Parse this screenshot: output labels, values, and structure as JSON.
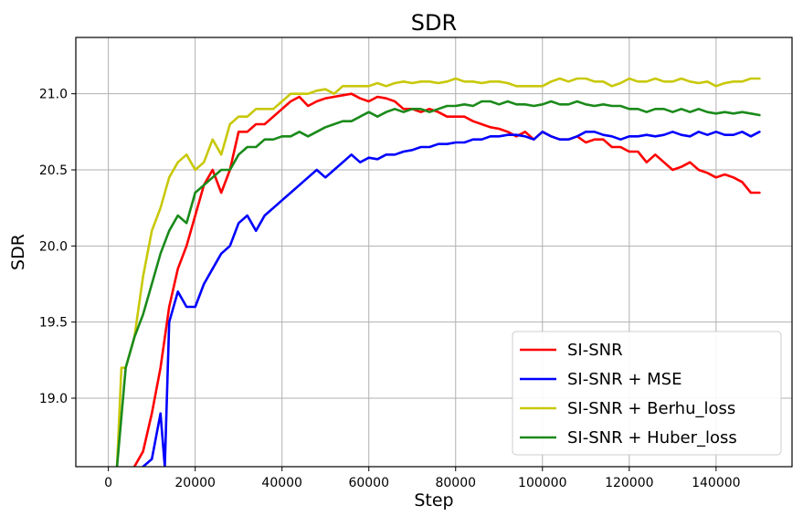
{
  "chart_data": {
    "type": "line",
    "title": "SDR",
    "xlabel": "Step",
    "ylabel": "SDR",
    "xlim": [
      -7500,
      157500
    ],
    "ylim": [
      18.55,
      21.37
    ],
    "xticks": [
      0,
      20000,
      40000,
      60000,
      80000,
      100000,
      120000,
      140000
    ],
    "xtick_labels": [
      "0",
      "20000",
      "40000",
      "60000",
      "80000",
      "100000",
      "120000",
      "140000"
    ],
    "yticks": [
      19.0,
      19.5,
      20.0,
      20.5,
      21.0
    ],
    "ytick_labels": [
      "19.0",
      "19.5",
      "20.0",
      "20.5",
      "21.0"
    ],
    "grid": true,
    "legend_position": "lower-right",
    "series": [
      {
        "name": "SI-SNR",
        "color": "#ff0000",
        "x": [
          6000,
          8000,
          10000,
          12000,
          14000,
          16000,
          18000,
          20000,
          22000,
          24000,
          26000,
          28000,
          30000,
          32000,
          34000,
          36000,
          38000,
          40000,
          42000,
          44000,
          46000,
          48000,
          50000,
          52000,
          54000,
          56000,
          58000,
          60000,
          62000,
          64000,
          66000,
          68000,
          70000,
          72000,
          74000,
          76000,
          78000,
          80000,
          82000,
          84000,
          86000,
          88000,
          90000,
          92000,
          94000,
          96000,
          98000,
          100000,
          102000,
          104000,
          106000,
          108000,
          110000,
          112000,
          114000,
          116000,
          118000,
          120000,
          122000,
          124000,
          126000,
          128000,
          130000,
          132000,
          134000,
          136000,
          138000,
          140000,
          142000,
          144000,
          146000,
          148000,
          150000
        ],
        "y": [
          18.55,
          18.65,
          18.9,
          19.2,
          19.6,
          19.85,
          20.0,
          20.2,
          20.4,
          20.5,
          20.35,
          20.5,
          20.75,
          20.75,
          20.8,
          20.8,
          20.85,
          20.9,
          20.95,
          20.98,
          20.92,
          20.95,
          20.97,
          20.98,
          20.99,
          21.0,
          20.97,
          20.95,
          20.98,
          20.97,
          20.95,
          20.9,
          20.9,
          20.88,
          20.9,
          20.88,
          20.85,
          20.85,
          20.85,
          20.82,
          20.8,
          20.78,
          20.77,
          20.75,
          20.72,
          20.75,
          20.7,
          20.75,
          20.72,
          20.7,
          20.7,
          20.72,
          20.68,
          20.7,
          20.7,
          20.65,
          20.65,
          20.62,
          20.62,
          20.55,
          20.6,
          20.55,
          20.5,
          20.52,
          20.55,
          20.5,
          20.48,
          20.45,
          20.47,
          20.45,
          20.42,
          20.35,
          20.35
        ]
      },
      {
        "name": "SI-SNR + MSE",
        "color": "#0000ff",
        "x": [
          8000,
          10000,
          12000,
          13000,
          14000,
          16000,
          18000,
          20000,
          22000,
          24000,
          26000,
          28000,
          30000,
          32000,
          34000,
          36000,
          38000,
          40000,
          42000,
          44000,
          46000,
          48000,
          50000,
          52000,
          54000,
          56000,
          58000,
          60000,
          62000,
          64000,
          66000,
          68000,
          70000,
          72000,
          74000,
          76000,
          78000,
          80000,
          82000,
          84000,
          86000,
          88000,
          90000,
          92000,
          94000,
          96000,
          98000,
          100000,
          102000,
          104000,
          106000,
          108000,
          110000,
          112000,
          114000,
          116000,
          118000,
          120000,
          122000,
          124000,
          126000,
          128000,
          130000,
          132000,
          134000,
          136000,
          138000,
          140000,
          142000,
          144000,
          146000,
          148000,
          150000
        ],
        "y": [
          18.55,
          18.6,
          18.9,
          18.55,
          19.5,
          19.7,
          19.6,
          19.6,
          19.75,
          19.85,
          19.95,
          20.0,
          20.15,
          20.2,
          20.1,
          20.2,
          20.25,
          20.3,
          20.35,
          20.4,
          20.45,
          20.5,
          20.45,
          20.5,
          20.55,
          20.6,
          20.55,
          20.58,
          20.57,
          20.6,
          20.6,
          20.62,
          20.63,
          20.65,
          20.65,
          20.67,
          20.67,
          20.68,
          20.68,
          20.7,
          20.7,
          20.72,
          20.72,
          20.73,
          20.73,
          20.72,
          20.7,
          20.75,
          20.72,
          20.7,
          20.7,
          20.72,
          20.75,
          20.75,
          20.73,
          20.72,
          20.7,
          20.72,
          20.72,
          20.73,
          20.72,
          20.73,
          20.75,
          20.73,
          20.72,
          20.75,
          20.73,
          20.75,
          20.73,
          20.73,
          20.75,
          20.72,
          20.75
        ]
      },
      {
        "name": "SI-SNR + Berhu_loss",
        "color": "#c8c80a",
        "x": [
          2000,
          3000,
          4000,
          6000,
          8000,
          10000,
          12000,
          14000,
          16000,
          18000,
          20000,
          22000,
          24000,
          26000,
          28000,
          30000,
          32000,
          34000,
          36000,
          38000,
          40000,
          42000,
          44000,
          46000,
          48000,
          50000,
          52000,
          54000,
          56000,
          58000,
          60000,
          62000,
          64000,
          66000,
          68000,
          70000,
          72000,
          74000,
          76000,
          78000,
          80000,
          82000,
          84000,
          86000,
          88000,
          90000,
          92000,
          94000,
          96000,
          98000,
          100000,
          102000,
          104000,
          106000,
          108000,
          110000,
          112000,
          114000,
          116000,
          118000,
          120000,
          122000,
          124000,
          126000,
          128000,
          130000,
          132000,
          134000,
          136000,
          138000,
          140000,
          142000,
          144000,
          146000,
          148000,
          150000
        ],
        "y": [
          18.55,
          19.2,
          19.2,
          19.4,
          19.8,
          20.1,
          20.25,
          20.45,
          20.55,
          20.6,
          20.5,
          20.55,
          20.7,
          20.6,
          20.8,
          20.85,
          20.85,
          20.9,
          20.9,
          20.9,
          20.95,
          21.0,
          21.0,
          21.0,
          21.02,
          21.03,
          21.0,
          21.05,
          21.05,
          21.05,
          21.05,
          21.07,
          21.05,
          21.07,
          21.08,
          21.07,
          21.08,
          21.08,
          21.07,
          21.08,
          21.1,
          21.08,
          21.08,
          21.07,
          21.08,
          21.08,
          21.07,
          21.05,
          21.05,
          21.05,
          21.05,
          21.08,
          21.1,
          21.08,
          21.1,
          21.1,
          21.08,
          21.08,
          21.05,
          21.07,
          21.1,
          21.08,
          21.08,
          21.1,
          21.08,
          21.08,
          21.1,
          21.08,
          21.07,
          21.08,
          21.05,
          21.07,
          21.08,
          21.08,
          21.1,
          21.1
        ]
      },
      {
        "name": "SI-SNR + Huber_loss",
        "color": "#1a8a1a",
        "x": [
          2000,
          4000,
          6000,
          8000,
          10000,
          12000,
          14000,
          16000,
          18000,
          20000,
          22000,
          24000,
          26000,
          28000,
          30000,
          32000,
          34000,
          36000,
          38000,
          40000,
          42000,
          44000,
          46000,
          48000,
          50000,
          52000,
          54000,
          56000,
          58000,
          60000,
          62000,
          64000,
          66000,
          68000,
          70000,
          72000,
          74000,
          76000,
          78000,
          80000,
          82000,
          84000,
          86000,
          88000,
          90000,
          92000,
          94000,
          96000,
          98000,
          100000,
          102000,
          104000,
          106000,
          108000,
          110000,
          112000,
          114000,
          116000,
          118000,
          120000,
          122000,
          124000,
          126000,
          128000,
          130000,
          132000,
          134000,
          136000,
          138000,
          140000,
          142000,
          144000,
          146000,
          148000,
          150000
        ],
        "y": [
          18.55,
          19.2,
          19.4,
          19.55,
          19.75,
          19.95,
          20.1,
          20.2,
          20.15,
          20.35,
          20.4,
          20.45,
          20.5,
          20.5,
          20.6,
          20.65,
          20.65,
          20.7,
          20.7,
          20.72,
          20.72,
          20.75,
          20.72,
          20.75,
          20.78,
          20.8,
          20.82,
          20.82,
          20.85,
          20.88,
          20.85,
          20.88,
          20.9,
          20.88,
          20.9,
          20.9,
          20.88,
          20.9,
          20.92,
          20.92,
          20.93,
          20.92,
          20.95,
          20.95,
          20.93,
          20.95,
          20.93,
          20.93,
          20.92,
          20.93,
          20.95,
          20.93,
          20.93,
          20.95,
          20.93,
          20.92,
          20.93,
          20.92,
          20.92,
          20.9,
          20.9,
          20.88,
          20.9,
          20.9,
          20.88,
          20.9,
          20.88,
          20.9,
          20.88,
          20.87,
          20.88,
          20.87,
          20.88,
          20.87,
          20.86
        ]
      }
    ]
  }
}
